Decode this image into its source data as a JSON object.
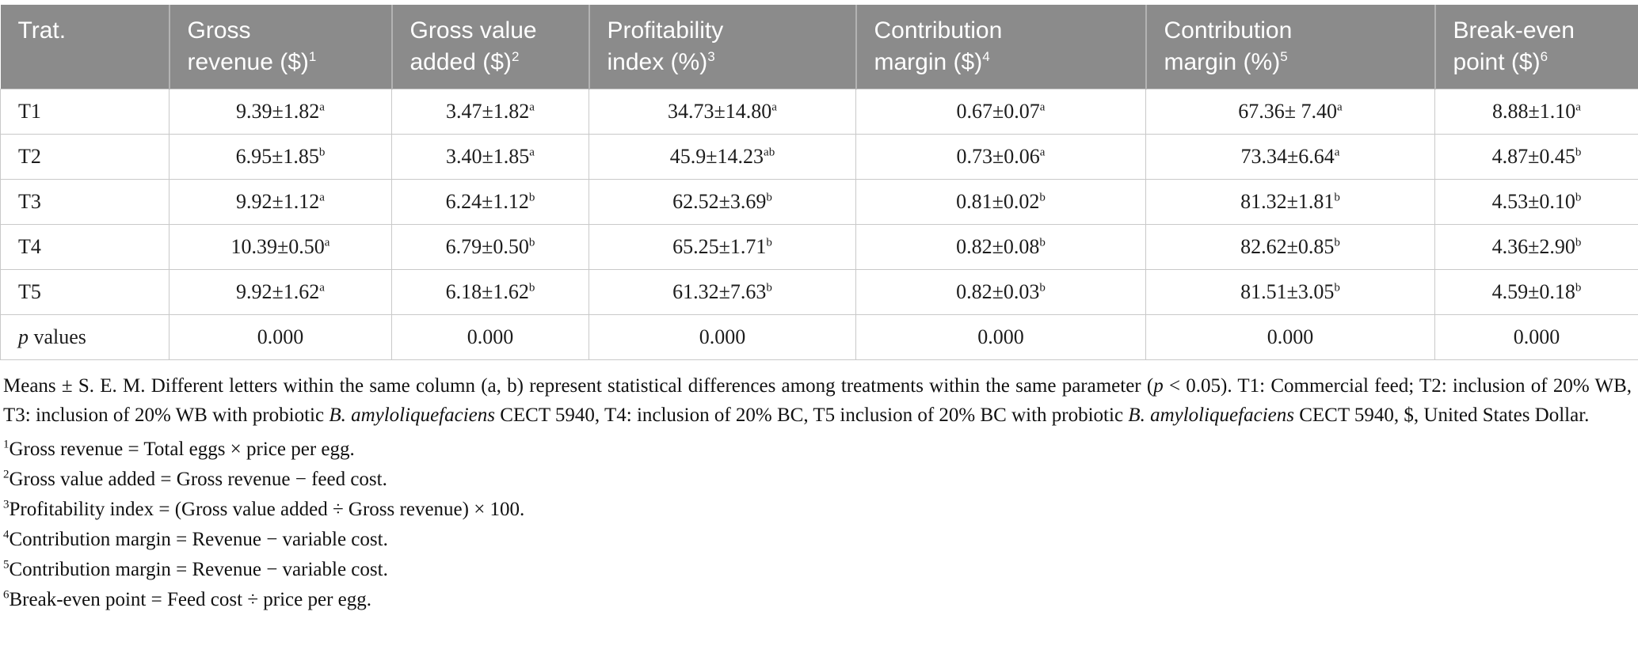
{
  "colors": {
    "header_background": "#8b8b8b",
    "header_text": "#ffffff",
    "cell_border": "#c9c9c9",
    "body_text": "#1c1c1c"
  },
  "table": {
    "columns": [
      {
        "line1": "Trat.",
        "line2": "",
        "sup": ""
      },
      {
        "line1": "Gross",
        "line2": "revenue ($)",
        "sup": "1"
      },
      {
        "line1": "Gross value",
        "line2": "added ($)",
        "sup": "2"
      },
      {
        "line1": "Profitability",
        "line2": "index (%)",
        "sup": "3"
      },
      {
        "line1": "Contribution",
        "line2": "margin ($)",
        "sup": "4"
      },
      {
        "line1": "Contribution",
        "line2": "margin (%)",
        "sup": "5"
      },
      {
        "line1": "Break-even",
        "line2": "point ($)",
        "sup": "6"
      }
    ],
    "rows": [
      {
        "treatment": "T1",
        "cells": [
          {
            "value": "9.39±1.82",
            "sup": "a"
          },
          {
            "value": "3.47±1.82",
            "sup": "a"
          },
          {
            "value": "34.73±14.80",
            "sup": "a"
          },
          {
            "value": "0.67±0.07",
            "sup": "a"
          },
          {
            "value": "67.36± 7.40",
            "sup": "a"
          },
          {
            "value": "8.88±1.10",
            "sup": "a"
          }
        ]
      },
      {
        "treatment": "T2",
        "cells": [
          {
            "value": "6.95±1.85",
            "sup": "b"
          },
          {
            "value": "3.40±1.85",
            "sup": "a"
          },
          {
            "value": "45.9±14.23",
            "sup": "ab"
          },
          {
            "value": "0.73±0.06",
            "sup": "a"
          },
          {
            "value": "73.34±6.64",
            "sup": "a"
          },
          {
            "value": "4.87±0.45",
            "sup": "b"
          }
        ]
      },
      {
        "treatment": "T3",
        "cells": [
          {
            "value": "9.92±1.12",
            "sup": "a"
          },
          {
            "value": "6.24±1.12",
            "sup": "b"
          },
          {
            "value": "62.52±3.69",
            "sup": "b"
          },
          {
            "value": "0.81±0.02",
            "sup": "b"
          },
          {
            "value": "81.32±1.81",
            "sup": "b"
          },
          {
            "value": "4.53±0.10",
            "sup": "b"
          }
        ]
      },
      {
        "treatment": "T4",
        "cells": [
          {
            "value": "10.39±0.50",
            "sup": "a"
          },
          {
            "value": "6.79±0.50",
            "sup": "b"
          },
          {
            "value": "65.25±1.71",
            "sup": "b"
          },
          {
            "value": "0.82±0.08",
            "sup": "b"
          },
          {
            "value": "82.62±0.85",
            "sup": "b"
          },
          {
            "value": "4.36±2.90",
            "sup": "b"
          }
        ]
      },
      {
        "treatment": "T5",
        "cells": [
          {
            "value": "9.92±1.62",
            "sup": "a"
          },
          {
            "value": "6.18±1.62",
            "sup": "b"
          },
          {
            "value": "61.32±7.63",
            "sup": "b"
          },
          {
            "value": "0.82±0.03",
            "sup": "b"
          },
          {
            "value": "81.51±3.05",
            "sup": "b"
          },
          {
            "value": "4.59±0.18",
            "sup": "b"
          }
        ]
      }
    ],
    "p_row": {
      "label": [
        {
          "text": "p",
          "italic": true
        },
        {
          "text": " values",
          "italic": false
        }
      ],
      "values": [
        "0.000",
        "0.000",
        "0.000",
        "0.000",
        "0.000",
        "0.000"
      ]
    }
  },
  "footnotes": {
    "paragraph": [
      {
        "text": "Means ± S. E. M. Different letters within the same column (a, b) represent statistical differences among treatments within the same parameter (",
        "italic": false
      },
      {
        "text": "p",
        "italic": true
      },
      {
        "text": " < 0.05). T1: Commercial feed; T2: inclusion of 20% WB, T3: inclusion of 20% WB with probiotic ",
        "italic": false
      },
      {
        "text": "B. amyloliquefaciens",
        "italic": true
      },
      {
        "text": " CECT 5940, T4: inclusion of 20% BC, T5 inclusion of 20% BC with probiotic ",
        "italic": false
      },
      {
        "text": "B. amyloliquefaciens",
        "italic": true
      },
      {
        "text": " CECT 5940, $, United States Dollar.",
        "italic": false
      }
    ],
    "numbered": [
      {
        "sup": "1",
        "text": "Gross revenue = Total eggs × price per egg."
      },
      {
        "sup": "2",
        "text": "Gross value added = Gross revenue − feed cost."
      },
      {
        "sup": "3",
        "text": "Profitability index = (Gross value added ÷ Gross revenue) × 100."
      },
      {
        "sup": "4",
        "text": "Contribution margin = Revenue − variable cost."
      },
      {
        "sup": "5",
        "text": "Contribution margin = Revenue − variable cost."
      },
      {
        "sup": "6",
        "text": "Break-even point = Feed cost ÷ price per egg."
      }
    ]
  }
}
